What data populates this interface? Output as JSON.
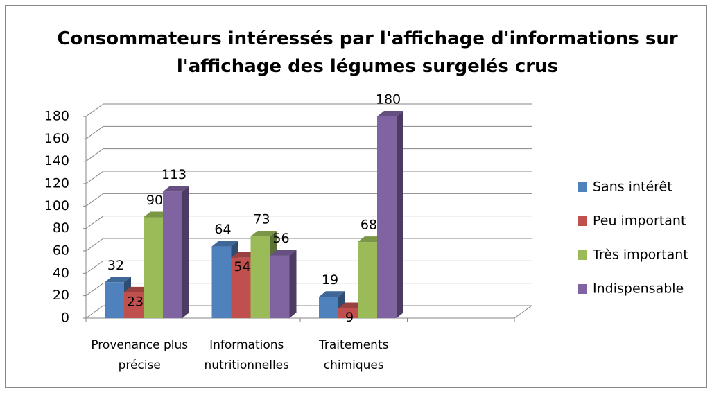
{
  "chart_data": {
    "type": "bar3d",
    "title": "Consommateurs intéressés par l'affichage d'informations sur l'affichage des légumes surgelés crus",
    "categories": [
      "Provenance plus précise",
      "Informations nutritionnelles",
      "Traitements chimiques"
    ],
    "series": [
      {
        "name": "Sans intérêt",
        "color": "#4f81bd",
        "values": [
          32,
          64,
          19
        ]
      },
      {
        "name": "Peu important",
        "color": "#c0504d",
        "values": [
          23,
          54,
          9
        ]
      },
      {
        "name": "Très important",
        "color": "#9bbb59",
        "values": [
          90,
          73,
          68
        ]
      },
      {
        "name": "Indispensable",
        "color": "#8064a2",
        "values": [
          113,
          56,
          180
        ]
      }
    ],
    "ylim": [
      0,
      180
    ],
    "yticks": [
      0,
      20,
      40,
      60,
      80,
      100,
      120,
      140,
      160,
      180
    ],
    "grid": true,
    "legend": "right"
  }
}
